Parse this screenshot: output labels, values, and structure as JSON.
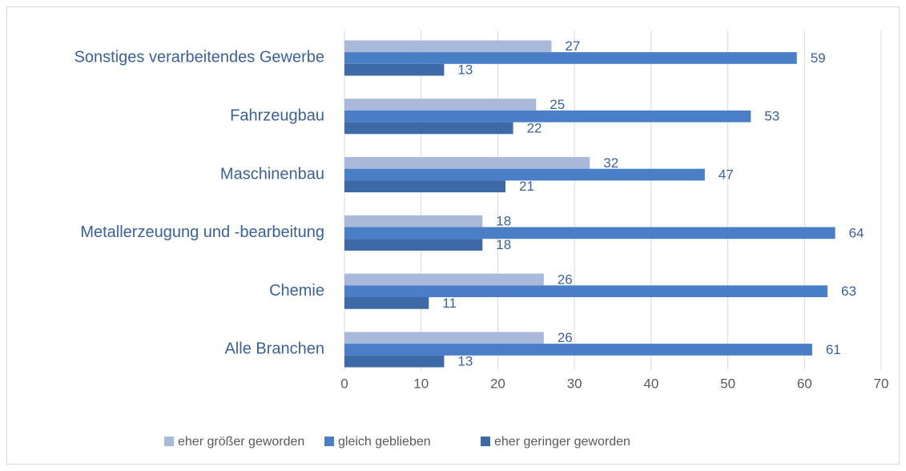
{
  "chart_data": {
    "type": "barh",
    "categories": [
      "Sonstiges verarbeitendes Gewerbe",
      "Fahrzeugbau",
      "Maschinenbau",
      "Metallerzeugung und -bearbeitung",
      "Chemie",
      "Alle Branchen"
    ],
    "series": [
      {
        "name": "eher größer geworden",
        "color": "#a9b9da",
        "values": [
          27,
          25,
          32,
          18,
          26,
          26
        ]
      },
      {
        "name": "gleich geblieben",
        "color": "#4a7ec6",
        "values": [
          59,
          53,
          47,
          64,
          63,
          61
        ]
      },
      {
        "name": "eher geringer geworden",
        "color": "#3d69a6",
        "values": [
          13,
          22,
          21,
          18,
          11,
          13
        ]
      }
    ],
    "xlim": [
      0,
      70
    ],
    "xticks": [
      0,
      10,
      20,
      30,
      40,
      50,
      60,
      70
    ],
    "grid": true,
    "legend": "bottom"
  }
}
